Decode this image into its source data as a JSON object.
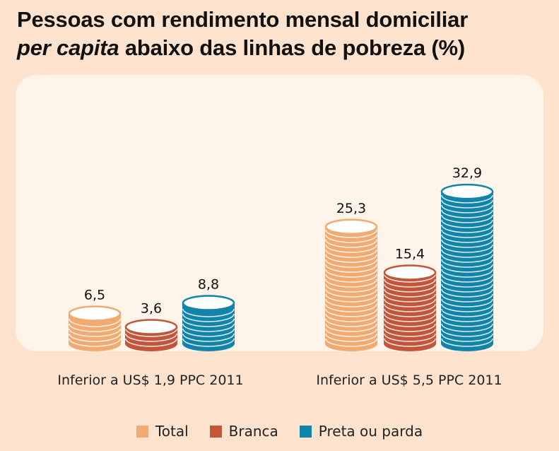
{
  "title": {
    "line1": "Pessoas com rendimento mensal domiciliar",
    "italic": "per capita",
    "line2_rest": " abaixo das linhas de pobreza (%)"
  },
  "colors": {
    "background": "#fde3cd",
    "panel": "#fef4ea",
    "Total": "#f3aa70",
    "Branca": "#c2553a",
    "Preta ou parda": "#1284aa"
  },
  "chart_data": {
    "type": "bar",
    "title": "Pessoas com rendimento mensal domiciliar per capita abaixo das linhas de pobreza (%)",
    "categories": [
      "Inferior a US$ 1,9 PPC 2011",
      "Inferior a US$ 5,5 PPC 2011"
    ],
    "series": [
      {
        "name": "Total",
        "values": [
          6.5,
          25.3
        ],
        "labels": [
          "6,5",
          "25,3"
        ]
      },
      {
        "name": "Branca",
        "values": [
          3.6,
          15.4
        ],
        "labels": [
          "3,6",
          "15,4"
        ]
      },
      {
        "name": "Preta ou parda",
        "values": [
          8.8,
          32.9
        ],
        "labels": [
          "8,8",
          "32,9"
        ]
      }
    ],
    "xlabel": "",
    "ylabel": "",
    "grid": false,
    "legend": "bottom"
  }
}
